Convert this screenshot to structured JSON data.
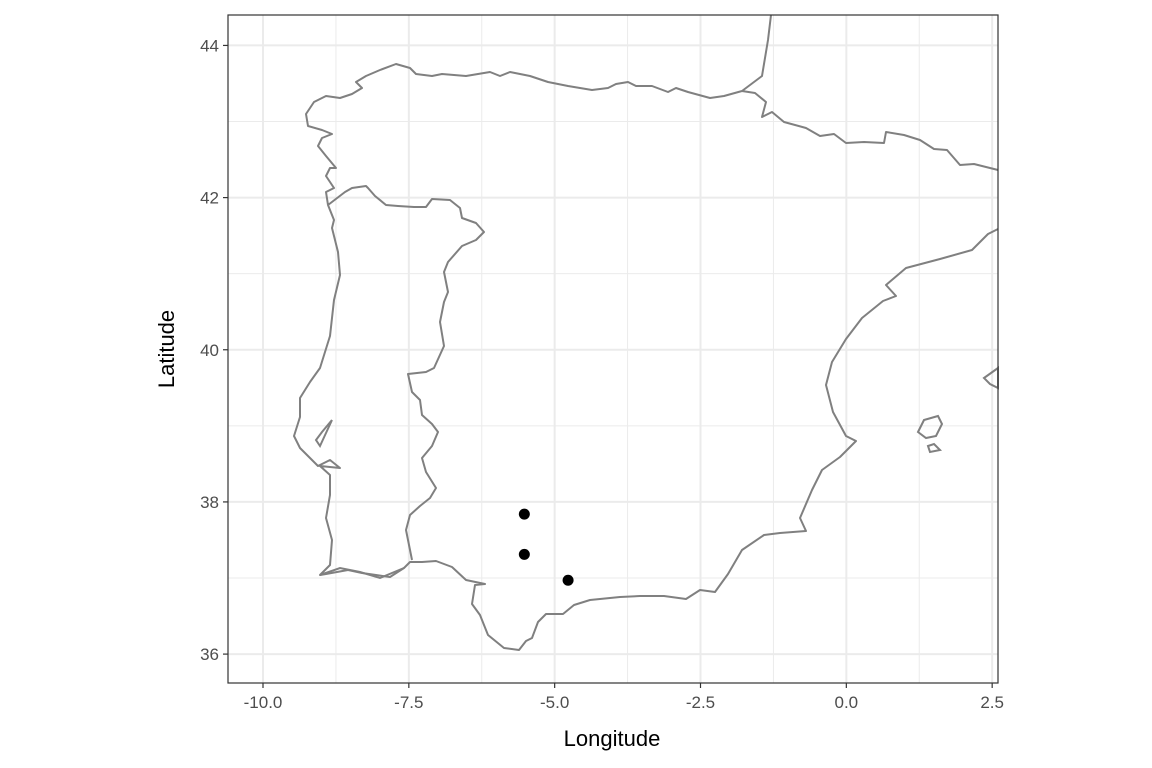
{
  "chart_data": {
    "type": "scatter",
    "xlabel": "Longitude",
    "ylabel": "Latitude",
    "xlim": [
      -10.6,
      2.6
    ],
    "ylim": [
      35.62,
      44.4
    ],
    "x_ticks": [
      {
        "value": -10.0,
        "label": "-10.0"
      },
      {
        "value": -7.5,
        "label": "-7.5"
      },
      {
        "value": -5.0,
        "label": "-5.0"
      },
      {
        "value": -2.5,
        "label": "-2.5"
      },
      {
        "value": 0.0,
        "label": "0.0"
      },
      {
        "value": 2.5,
        "label": "2.5"
      }
    ],
    "y_ticks": [
      {
        "value": 36,
        "label": "36"
      },
      {
        "value": 38,
        "label": "38"
      },
      {
        "value": 40,
        "label": "40"
      },
      {
        "value": 42,
        "label": "42"
      },
      {
        "value": 44,
        "label": "44"
      }
    ],
    "x_minor_ticks": [
      -8.75,
      -6.25,
      -3.75,
      -1.25,
      1.25
    ],
    "y_minor_ticks": [
      37,
      39,
      41,
      43
    ],
    "grid": true,
    "points": [
      {
        "x": -5.52,
        "y": 37.84
      },
      {
        "x": -5.52,
        "y": 37.31
      },
      {
        "x": -4.77,
        "y": 36.97
      }
    ],
    "basemap": "Iberian Peninsula coastline and borders",
    "colors": {
      "outline": "#808080",
      "points": "#000000",
      "grid": "#ebebeb",
      "panel_border": "#333333"
    }
  }
}
